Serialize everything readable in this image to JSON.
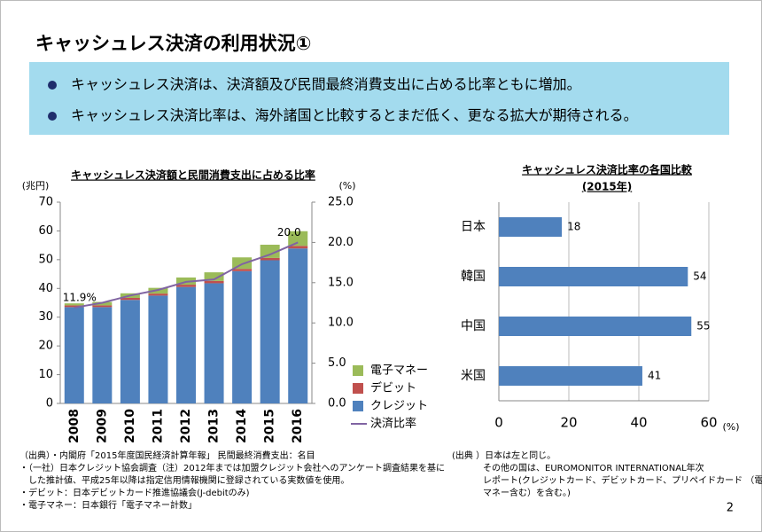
{
  "page_title": "キャッシュレス決済の利用状況①",
  "bullets": [
    "キャッシュレス決済は、決済額及び民間最終消費支出に占める比率ともに増加。",
    "キャッシュレス決済比率は、海外諸国と比較するとまだ低く、更なる拡大が期待される。"
  ],
  "chart_data": [
    {
      "type": "bar",
      "stacked": true,
      "title": "キャッシュレス決済額と民間消費支出に占める比率",
      "y_label": "(兆円)",
      "y2_label": "(%)",
      "categories": [
        "2008",
        "2009",
        "2010",
        "2011",
        "2012",
        "2013",
        "2014",
        "2015",
        "2016"
      ],
      "series": [
        {
          "name": "電子マネー",
          "color": "#9bbb59",
          "values": [
            0.7,
            1.2,
            1.6,
            2.0,
            2.5,
            3.0,
            4.0,
            4.6,
            5.1
          ]
        },
        {
          "name": "デビット",
          "color": "#c0504d",
          "values": [
            0.6,
            0.6,
            0.7,
            0.7,
            0.8,
            0.8,
            0.8,
            0.8,
            0.9
          ]
        },
        {
          "name": "クレジット",
          "color": "#4f81bd",
          "values": [
            33.5,
            33.5,
            36.0,
            37.5,
            40.5,
            41.8,
            46.0,
            49.8,
            53.9
          ]
        },
        {
          "name": "決済比率",
          "color": "#8064a2",
          "axis": "y2",
          "values": [
            11.9,
            12.5,
            13.4,
            14.1,
            15.1,
            15.4,
            17.3,
            18.5,
            20.0
          ],
          "value_labels": [
            "11.9%",
            null,
            null,
            null,
            null,
            null,
            null,
            null,
            "20.0"
          ]
        }
      ],
      "ylim": [
        0,
        70
      ],
      "yticks": [
        0,
        10,
        20,
        30,
        40,
        50,
        60,
        70
      ],
      "y2lim": [
        0,
        25
      ],
      "y2ticks": [
        {
          "value": 0,
          "label": "0.0"
        },
        {
          "value": 5,
          "label": "5.0"
        },
        {
          "value": 10,
          "label": "10.0"
        },
        {
          "value": 15,
          "label": "15.0"
        },
        {
          "value": 20,
          "label": "20.0"
        },
        {
          "value": 25,
          "label": "25.0"
        }
      ],
      "grid": false,
      "legend": "right"
    },
    {
      "type": "hbar",
      "title": "キャッシュレス決済比率の各国比較",
      "subtitle": "(2015年)",
      "x_label": "(%)",
      "categories": [
        "日本",
        "韓国",
        "中国",
        "米国"
      ],
      "values": [
        18,
        54,
        55,
        41
      ],
      "color": "#4f81bd",
      "xlim": [
        0,
        60
      ],
      "xticks": [
        0,
        20,
        40,
        60
      ],
      "grid": true
    }
  ],
  "notes_left": [
    "（出典）・内閣府「2015年度国民経済計算年報」 民間最終消費支出：名目",
    "・（一社）日本クレジット協会調査（注）2012年までは加盟クレジット会社へのアンケート調査結果を基に",
    "　した推計値、平成25年以降は指定信用情報機関に登録されている実数値を使用。",
    "・デビット：日本デビットカード推進協議会(J-debitのみ)",
    "・電子マネー：日本銀行「電子マネー計数」"
  ],
  "notes_right": [
    "(出典 ）日本は左と同じ。",
    "その他の国は、EUROMONITOR INTERNATIONAL年次",
    "レポート(クレジットカード、デビットカード、プリペイドカード （電子",
    "マネー含む）を含む。)"
  ],
  "page_number": "2"
}
